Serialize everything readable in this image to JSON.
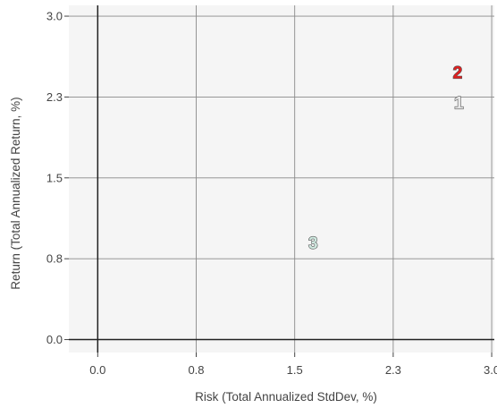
{
  "chart_data": {
    "type": "scatter",
    "xlabel": "Risk (Total Annualized StdDev, %)",
    "ylabel": "Return (Total Annualized Return, %)",
    "xlim": [
      -0.22,
      3.02
    ],
    "ylim": [
      -0.12,
      3.1
    ],
    "x_ticks": [
      0.0,
      0.75,
      1.5,
      2.25,
      3.0
    ],
    "x_tick_labels": [
      "0.0",
      "0.8",
      "1.5",
      "2.3",
      "3.0"
    ],
    "y_ticks": [
      0.0,
      0.75,
      1.5,
      2.25,
      3.0
    ],
    "y_tick_labels": [
      "0.0",
      "0.8",
      "1.5",
      "2.3",
      "3.0"
    ],
    "grid": true,
    "points": [
      {
        "label": "1",
        "x": 2.75,
        "y": 2.2,
        "color": "#e8e8e8"
      },
      {
        "label": "2",
        "x": 2.74,
        "y": 2.48,
        "color": "#e01e1e"
      },
      {
        "label": "3",
        "x": 1.64,
        "y": 0.9,
        "color": "#cfe8df"
      }
    ]
  }
}
